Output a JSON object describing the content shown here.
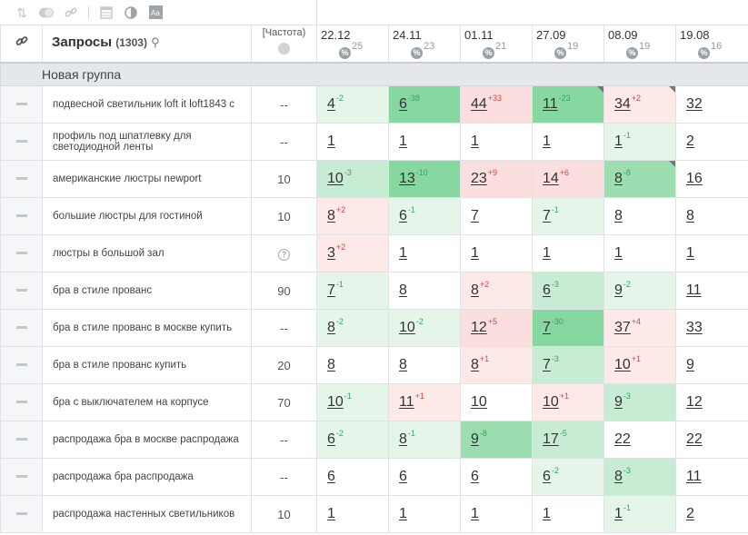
{
  "toolbar": {
    "icons": [
      "sort-icon",
      "toggle-icon",
      "link-icon",
      "table-icon",
      "contrast-icon",
      "font-icon"
    ]
  },
  "header": {
    "query_title": "Запросы",
    "query_count": "(1303)",
    "freq_label": "[Частота)",
    "dates": [
      {
        "date": "22.12",
        "pct": "25"
      },
      {
        "date": "24.11",
        "pct": "23"
      },
      {
        "date": "01.11",
        "pct": "21"
      },
      {
        "date": "27.09",
        "pct": "19"
      },
      {
        "date": "08.09",
        "pct": "19"
      },
      {
        "date": "19.08",
        "pct": "16"
      }
    ]
  },
  "group": {
    "label": "Новая группа"
  },
  "rows": [
    {
      "query": "подвесной светильник loft it loft1843 c",
      "freq": "--",
      "cells": [
        {
          "v": "4",
          "c": "-2",
          "d": "up",
          "bg": "g1"
        },
        {
          "v": "6",
          "c": "-38",
          "d": "up",
          "bg": "g4"
        },
        {
          "v": "44",
          "c": "+33",
          "d": "dn",
          "bg": "r2"
        },
        {
          "v": "11",
          "c": "-23",
          "d": "up",
          "bg": "g4",
          "corner": true
        },
        {
          "v": "34",
          "c": "+2",
          "d": "dn",
          "bg": "r1",
          "corner": true
        },
        {
          "v": "32",
          "c": "",
          "d": "",
          "bg": "w"
        }
      ]
    },
    {
      "query": "профиль под шпатлевку для светодиодной ленты",
      "freq": "--",
      "cells": [
        {
          "v": "1",
          "c": "",
          "d": "",
          "bg": "w"
        },
        {
          "v": "1",
          "c": "",
          "d": "",
          "bg": "w"
        },
        {
          "v": "1",
          "c": "",
          "d": "",
          "bg": "w"
        },
        {
          "v": "1",
          "c": "",
          "d": "",
          "bg": "w"
        },
        {
          "v": "1",
          "c": "-1",
          "d": "up",
          "bg": "g1"
        },
        {
          "v": "2",
          "c": "",
          "d": "",
          "bg": "w"
        }
      ]
    },
    {
      "query": "американские люстры newport",
      "freq": "10",
      "cells": [
        {
          "v": "10",
          "c": "-3",
          "d": "up",
          "bg": "g2"
        },
        {
          "v": "13",
          "c": "-10",
          "d": "up",
          "bg": "g4"
        },
        {
          "v": "23",
          "c": "+9",
          "d": "dn",
          "bg": "r2"
        },
        {
          "v": "14",
          "c": "+6",
          "d": "dn",
          "bg": "r2"
        },
        {
          "v": "8",
          "c": "-8",
          "d": "up",
          "bg": "g3",
          "corner": true
        },
        {
          "v": "16",
          "c": "",
          "d": "",
          "bg": "w"
        }
      ]
    },
    {
      "query": "большие люстры для гостиной",
      "freq": "10",
      "cells": [
        {
          "v": "8",
          "c": "+2",
          "d": "dn",
          "bg": "r1"
        },
        {
          "v": "6",
          "c": "-1",
          "d": "up",
          "bg": "g1"
        },
        {
          "v": "7",
          "c": "",
          "d": "",
          "bg": "w"
        },
        {
          "v": "7",
          "c": "-1",
          "d": "up",
          "bg": "g1"
        },
        {
          "v": "8",
          "c": "",
          "d": "",
          "bg": "w"
        },
        {
          "v": "8",
          "c": "",
          "d": "",
          "bg": "w"
        }
      ]
    },
    {
      "query": "люстры в большой зал",
      "freq": "?",
      "cells": [
        {
          "v": "3",
          "c": "+2",
          "d": "dn",
          "bg": "r1"
        },
        {
          "v": "1",
          "c": "",
          "d": "",
          "bg": "w"
        },
        {
          "v": "1",
          "c": "",
          "d": "",
          "bg": "w"
        },
        {
          "v": "1",
          "c": "",
          "d": "",
          "bg": "w"
        },
        {
          "v": "1",
          "c": "",
          "d": "",
          "bg": "w"
        },
        {
          "v": "1",
          "c": "",
          "d": "",
          "bg": "w"
        }
      ]
    },
    {
      "query": "бра в стиле прованс",
      "freq": "90",
      "cells": [
        {
          "v": "7",
          "c": "-1",
          "d": "up",
          "bg": "g1"
        },
        {
          "v": "8",
          "c": "",
          "d": "",
          "bg": "w"
        },
        {
          "v": "8",
          "c": "+2",
          "d": "dn",
          "bg": "r1"
        },
        {
          "v": "6",
          "c": "-3",
          "d": "up",
          "bg": "g2"
        },
        {
          "v": "9",
          "c": "-2",
          "d": "up",
          "bg": "g1"
        },
        {
          "v": "11",
          "c": "",
          "d": "",
          "bg": "w"
        }
      ]
    },
    {
      "query": "бра в стиле прованс в москве купить",
      "freq": "--",
      "cells": [
        {
          "v": "8",
          "c": "-2",
          "d": "up",
          "bg": "g1"
        },
        {
          "v": "10",
          "c": "-2",
          "d": "up",
          "bg": "g1"
        },
        {
          "v": "12",
          "c": "+5",
          "d": "dn",
          "bg": "r2"
        },
        {
          "v": "7",
          "c": "-30",
          "d": "up",
          "bg": "g4"
        },
        {
          "v": "37",
          "c": "+4",
          "d": "dn",
          "bg": "r1"
        },
        {
          "v": "33",
          "c": "",
          "d": "",
          "bg": "w"
        }
      ]
    },
    {
      "query": "бра в стиле прованс купить",
      "freq": "20",
      "cells": [
        {
          "v": "8",
          "c": "",
          "d": "",
          "bg": "w"
        },
        {
          "v": "8",
          "c": "",
          "d": "",
          "bg": "w"
        },
        {
          "v": "8",
          "c": "+1",
          "d": "dn",
          "bg": "r1"
        },
        {
          "v": "7",
          "c": "-3",
          "d": "up",
          "bg": "g2"
        },
        {
          "v": "10",
          "c": "+1",
          "d": "dn",
          "bg": "r1"
        },
        {
          "v": "9",
          "c": "",
          "d": "",
          "bg": "w"
        }
      ]
    },
    {
      "query": "бра с выключателем на корпусе",
      "freq": "70",
      "cells": [
        {
          "v": "10",
          "c": "-1",
          "d": "up",
          "bg": "g1"
        },
        {
          "v": "11",
          "c": "+1",
          "d": "dn",
          "bg": "r1"
        },
        {
          "v": "10",
          "c": "",
          "d": "",
          "bg": "w"
        },
        {
          "v": "10",
          "c": "+1",
          "d": "dn",
          "bg": "r1"
        },
        {
          "v": "9",
          "c": "-3",
          "d": "up",
          "bg": "g2"
        },
        {
          "v": "12",
          "c": "",
          "d": "",
          "bg": "w"
        }
      ]
    },
    {
      "query": "распродажа бра в москве распродажа",
      "freq": "--",
      "cells": [
        {
          "v": "6",
          "c": "-2",
          "d": "up",
          "bg": "g1"
        },
        {
          "v": "8",
          "c": "-1",
          "d": "up",
          "bg": "g1"
        },
        {
          "v": "9",
          "c": "-8",
          "d": "up",
          "bg": "g3"
        },
        {
          "v": "17",
          "c": "-5",
          "d": "up",
          "bg": "g2"
        },
        {
          "v": "22",
          "c": "",
          "d": "",
          "bg": "w"
        },
        {
          "v": "22",
          "c": "",
          "d": "",
          "bg": "w"
        }
      ]
    },
    {
      "query": "распродажа бра распродажа",
      "freq": "--",
      "cells": [
        {
          "v": "6",
          "c": "",
          "d": "",
          "bg": "w"
        },
        {
          "v": "6",
          "c": "",
          "d": "",
          "bg": "w"
        },
        {
          "v": "6",
          "c": "",
          "d": "",
          "bg": "w"
        },
        {
          "v": "6",
          "c": "-2",
          "d": "up",
          "bg": "g1"
        },
        {
          "v": "8",
          "c": "-3",
          "d": "up",
          "bg": "g2"
        },
        {
          "v": "11",
          "c": "",
          "d": "",
          "bg": "w"
        }
      ]
    },
    {
      "query": "распродажа настенных светильников",
      "freq": "10",
      "cells": [
        {
          "v": "1",
          "c": "",
          "d": "",
          "bg": "w"
        },
        {
          "v": "1",
          "c": "",
          "d": "",
          "bg": "w"
        },
        {
          "v": "1",
          "c": "",
          "d": "",
          "bg": "w"
        },
        {
          "v": "1",
          "c": "",
          "d": "",
          "bg": "w"
        },
        {
          "v": "1",
          "c": "-1",
          "d": "up",
          "bg": "g1"
        },
        {
          "v": "2",
          "c": "",
          "d": "",
          "bg": "w"
        }
      ]
    }
  ]
}
